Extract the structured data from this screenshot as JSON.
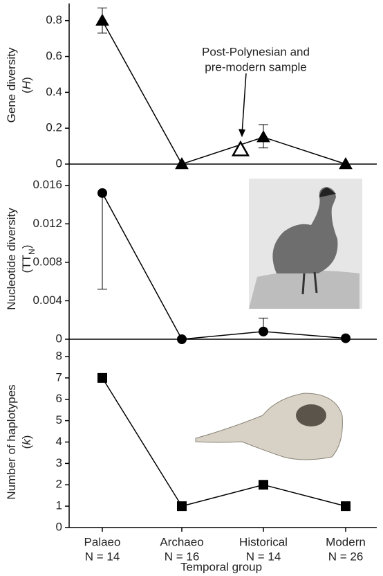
{
  "chart_data": [
    {
      "type": "line",
      "ylabel": "Gene diversity",
      "ylabel_symbol": [
        "(",
        "H",
        ")"
      ],
      "values": [
        0.8,
        0,
        0.15,
        0
      ],
      "errors_lower": [
        0.07,
        null,
        0.06,
        null
      ],
      "errors_upper": [
        0.07,
        null,
        0.07,
        null
      ],
      "marker": "triangle",
      "color": "#000000",
      "ylim": [
        0,
        0.88
      ],
      "yticks": [
        0,
        0.2,
        0.4,
        0.6,
        0.8
      ],
      "annotation": {
        "lines": [
          "Post-Polynesian and",
          "pre-modern sample"
        ],
        "value": 0.08,
        "marker": "open-triangle"
      }
    },
    {
      "type": "line",
      "ylabel": "Nucleotide diversity",
      "ylabel_symbol": [
        "(TT",
        "N",
        ")"
      ],
      "values": [
        0.0152,
        0,
        0.0008,
        0.0001
      ],
      "errors_lower": [
        0.01,
        null,
        null,
        null
      ],
      "errors_upper": [
        null,
        null,
        0.0014,
        null
      ],
      "marker": "circle",
      "color": "#000000",
      "ylim": [
        0,
        0.0167
      ],
      "yticks": [
        0,
        0.004,
        0.008,
        0.012,
        0.016
      ]
    },
    {
      "type": "line",
      "ylabel": "Number of haplotypes",
      "ylabel_symbol": [
        "(",
        "k",
        ")"
      ],
      "values": [
        7,
        1,
        2,
        1
      ],
      "marker": "square",
      "color": "#000000",
      "ylim": [
        0,
        8
      ],
      "yticks": [
        0,
        1,
        2,
        3,
        4,
        5,
        6,
        7,
        8
      ],
      "categories": [
        "Palaeo",
        "Archaeo",
        "Historical",
        "Modern"
      ],
      "category_sizes": [
        "N = 14",
        "N = 16",
        "N = 14",
        "N = 26"
      ],
      "xlabel": "Temporal group"
    }
  ]
}
